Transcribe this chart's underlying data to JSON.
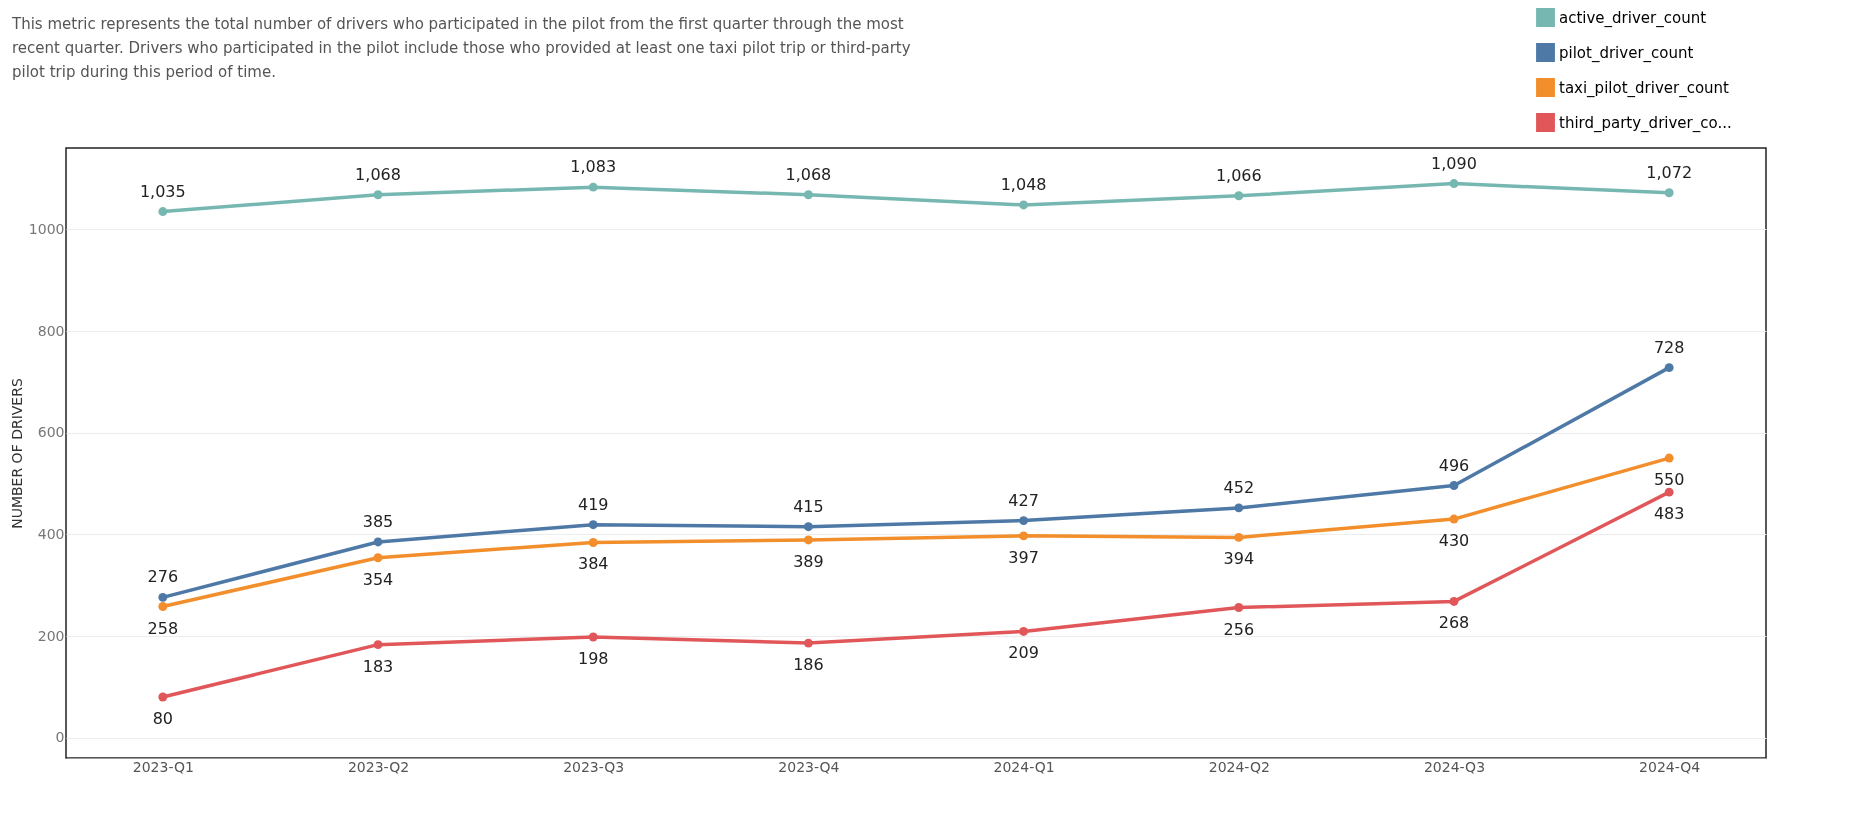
{
  "chart_data": {
    "type": "line",
    "subtitle": "This metric represents the total number of drivers who participated in the pilot from the first quarter through the most recent quarter. Drivers who participated in the pilot include those who provided at least one taxi pilot trip or third-party pilot trip during this period of time.",
    "ylabel": "NUMBER OF DRIVERS",
    "categories": [
      "2023-Q1",
      "2023-Q2",
      "2023-Q3",
      "2023-Q4",
      "2024-Q1",
      "2024-Q2",
      "2024-Q3",
      "2024-Q4"
    ],
    "series": [
      {
        "name": "active_driver_count",
        "color": "#76b7b2",
        "values": [
          1035,
          1068,
          1083,
          1068,
          1048,
          1066,
          1090,
          1072
        ],
        "value_labels": [
          "1,035",
          "1,068",
          "1,083",
          "1,068",
          "1,048",
          "1,066",
          "1,090",
          "1,072"
        ]
      },
      {
        "name": "pilot_driver_count",
        "color": "#4e79a7",
        "values": [
          276,
          385,
          419,
          415,
          427,
          452,
          496,
          728
        ],
        "value_labels": [
          "276",
          "385",
          "419",
          "415",
          "427",
          "452",
          "496",
          "728"
        ]
      },
      {
        "name": "taxi_pilot_driver_count",
        "color": "#f28e2b",
        "values": [
          258,
          354,
          384,
          389,
          397,
          394,
          430,
          550
        ],
        "value_labels": [
          "258",
          "354",
          "384",
          "389",
          "397",
          "394",
          "430",
          "550"
        ]
      },
      {
        "name": "third_party_driver_co...",
        "color": "#e15759",
        "values": [
          80,
          183,
          198,
          186,
          209,
          256,
          268,
          483
        ],
        "value_labels": [
          "80",
          "183",
          "198",
          "186",
          "209",
          "256",
          "268",
          "483"
        ]
      }
    ],
    "ylim": [
      -40,
      1160
    ],
    "yticks": [
      0,
      200,
      400,
      600,
      800,
      1000
    ],
    "grid": "y",
    "legend": "top right",
    "marker": "circle",
    "line_style": "solid"
  }
}
